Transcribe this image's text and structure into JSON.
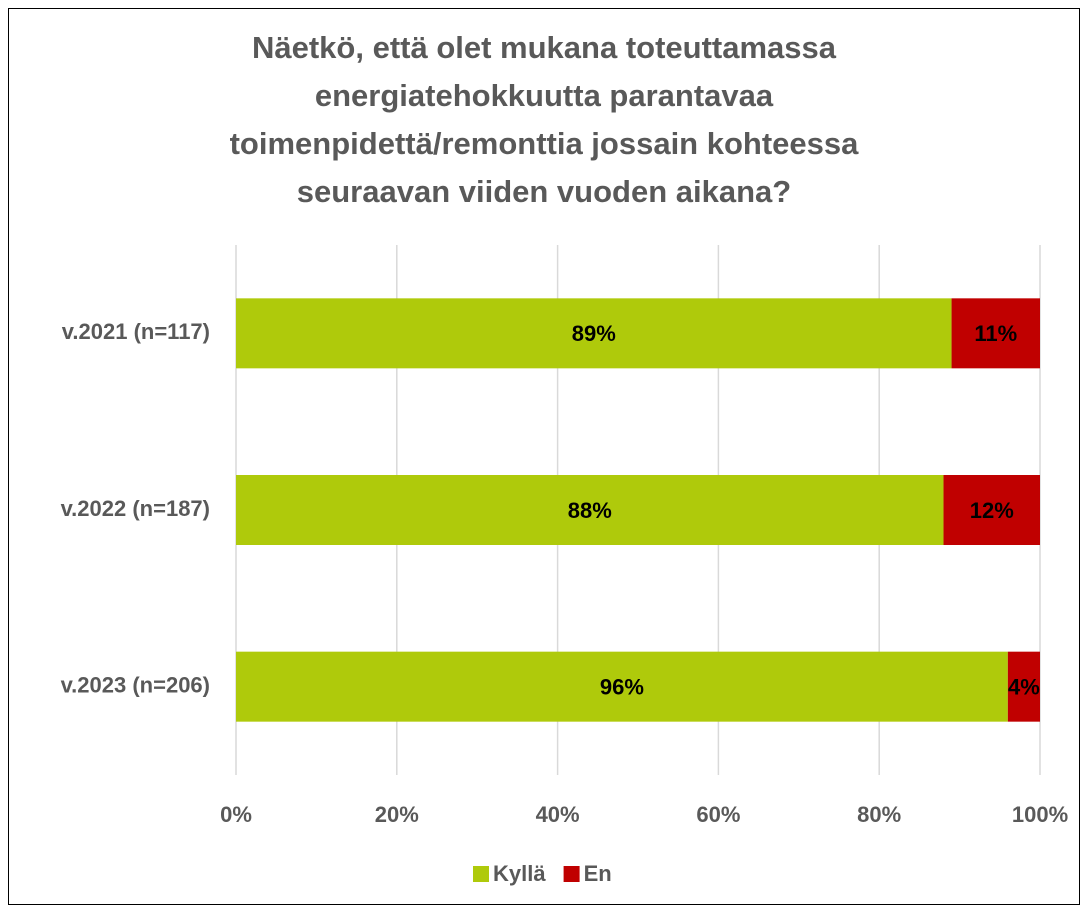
{
  "chart_data": {
    "type": "stacked-bar-horizontal",
    "title": [
      "Näetkö, että olet mukana toteuttamassa",
      "energiatehokkuutta parantavaa",
      "toimenpidettä/remonttia jossain kohteessa",
      "seuraavan viiden vuoden aikana?"
    ],
    "categories": [
      "v.2021 (n=117)",
      "v.2022 (n=187)",
      "v.2023 (n=206)"
    ],
    "series": [
      {
        "name": "Kyllä",
        "color": "#afca0b",
        "values": [
          89,
          88,
          96
        ],
        "value_labels": [
          "89%",
          "88%",
          "96%"
        ]
      },
      {
        "name": "En",
        "color": "#c00000",
        "values": [
          11,
          12,
          4
        ],
        "value_labels": [
          "11%",
          "12%",
          "4%"
        ]
      }
    ],
    "xlim": [
      0,
      100
    ],
    "xticks": [
      {
        "value": 0,
        "label": "0%"
      },
      {
        "value": 20,
        "label": "20%"
      },
      {
        "value": 40,
        "label": "40%"
      },
      {
        "value": 60,
        "label": "60%"
      },
      {
        "value": 80,
        "label": "80%"
      },
      {
        "value": 100,
        "label": "100%"
      }
    ],
    "grid": true,
    "legend": "bottom"
  }
}
